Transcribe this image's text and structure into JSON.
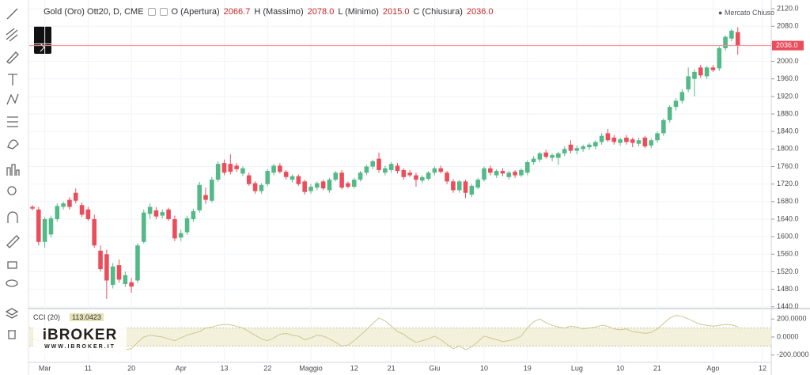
{
  "header": {
    "symbol": "Gold (Oro) Ott20, D, CME",
    "open_label": "O (Apertura)",
    "open": "2066.7",
    "high_label": "H (Massimo)",
    "high": "2078.0",
    "low_label": "L (Minimo)",
    "low": "2015.0",
    "close_label": "C (Chiusura)",
    "close": "2036.0",
    "market_status": "Mercato Chiuso",
    "last_price_label": "2036.0"
  },
  "logo": {
    "brand": "iBROKER",
    "url": "WWW.IBROKER.IT"
  },
  "chart_data": {
    "type": "candlestick",
    "up_color": "#53b987",
    "down_color": "#eb4d5c",
    "price_line_color": "#f28b8b",
    "categories": [
      null,
      null,
      "Mar",
      null,
      null,
      null,
      null,
      null,
      null,
      "11",
      null,
      null,
      null,
      null,
      null,
      null,
      "20",
      null,
      null,
      null,
      null,
      null,
      null,
      null,
      "Apr",
      null,
      null,
      null,
      null,
      null,
      null,
      "13",
      null,
      null,
      null,
      null,
      null,
      null,
      "22",
      null,
      null,
      null,
      null,
      null,
      null,
      "Maggio",
      null,
      null,
      null,
      null,
      null,
      null,
      "12",
      null,
      null,
      null,
      null,
      null,
      "21",
      null,
      null,
      null,
      null,
      null,
      null,
      "Giu",
      null,
      null,
      null,
      null,
      null,
      null,
      null,
      "10",
      null,
      null,
      null,
      null,
      null,
      null,
      "19",
      null,
      null,
      null,
      null,
      null,
      null,
      null,
      "Lug",
      null,
      null,
      null,
      null,
      null,
      null,
      "10",
      null,
      null,
      null,
      null,
      null,
      "21",
      null,
      null,
      null,
      null,
      null,
      null,
      null,
      null,
      "Ago",
      null,
      null,
      null,
      null,
      null,
      null,
      null,
      "12"
    ],
    "candles": [
      [
        1668,
        1672,
        1660,
        1664
      ],
      [
        1662,
        1668,
        1580,
        1588
      ],
      [
        1588,
        1645,
        1575,
        1640
      ],
      [
        1605,
        1648,
        1598,
        1642
      ],
      [
        1640,
        1676,
        1634,
        1670
      ],
      [
        1668,
        1680,
        1662,
        1676
      ],
      [
        1684,
        1690,
        1662,
        1668
      ],
      [
        1700,
        1710,
        1676,
        1682
      ],
      [
        1672,
        1678,
        1645,
        1650
      ],
      [
        1662,
        1668,
        1636,
        1640
      ],
      [
        1640,
        1650,
        1575,
        1580
      ],
      [
        1568,
        1580,
        1520,
        1526
      ],
      [
        1560,
        1570,
        1458,
        1500
      ],
      [
        1490,
        1540,
        1482,
        1532
      ],
      [
        1535,
        1548,
        1495,
        1502
      ],
      [
        1492,
        1520,
        1485,
        1512
      ],
      [
        1496,
        1506,
        1472,
        1486
      ],
      [
        1500,
        1585,
        1494,
        1580
      ],
      [
        1588,
        1662,
        1584,
        1655
      ],
      [
        1652,
        1676,
        1640,
        1668
      ],
      [
        1660,
        1668,
        1640,
        1646
      ],
      [
        1648,
        1662,
        1642,
        1656
      ],
      [
        1662,
        1666,
        1636,
        1640
      ],
      [
        1640,
        1648,
        1590,
        1596
      ],
      [
        1598,
        1616,
        1590,
        1608
      ],
      [
        1610,
        1648,
        1604,
        1642
      ],
      [
        1640,
        1664,
        1634,
        1658
      ],
      [
        1660,
        1725,
        1655,
        1718
      ],
      [
        1695,
        1712,
        1675,
        1684
      ],
      [
        1682,
        1736,
        1678,
        1730
      ],
      [
        1730,
        1772,
        1725,
        1766
      ],
      [
        1768,
        1776,
        1740,
        1746
      ],
      [
        1766,
        1788,
        1742,
        1748
      ],
      [
        1762,
        1768,
        1748,
        1754
      ],
      [
        1744,
        1760,
        1738,
        1756
      ],
      [
        1740,
        1746,
        1716,
        1720
      ],
      [
        1722,
        1726,
        1698,
        1704
      ],
      [
        1704,
        1722,
        1698,
        1718
      ],
      [
        1720,
        1754,
        1715,
        1750
      ],
      [
        1746,
        1766,
        1740,
        1762
      ],
      [
        1762,
        1768,
        1744,
        1748
      ],
      [
        1748,
        1752,
        1730,
        1736
      ],
      [
        1730,
        1742,
        1724,
        1738
      ],
      [
        1738,
        1742,
        1716,
        1720
      ],
      [
        1726,
        1730,
        1696,
        1702
      ],
      [
        1704,
        1720,
        1698,
        1714
      ],
      [
        1712,
        1726,
        1706,
        1722
      ],
      [
        1726,
        1730,
        1706,
        1710
      ],
      [
        1706,
        1734,
        1700,
        1730
      ],
      [
        1730,
        1750,
        1726,
        1746
      ],
      [
        1746,
        1752,
        1708,
        1712
      ],
      [
        1722,
        1726,
        1710,
        1714
      ],
      [
        1714,
        1734,
        1710,
        1730
      ],
      [
        1730,
        1750,
        1726,
        1746
      ],
      [
        1746,
        1764,
        1740,
        1760
      ],
      [
        1760,
        1776,
        1754,
        1772
      ],
      [
        1778,
        1792,
        1746,
        1752
      ],
      [
        1746,
        1762,
        1740,
        1756
      ],
      [
        1752,
        1770,
        1746,
        1766
      ],
      [
        1762,
        1768,
        1744,
        1750
      ],
      [
        1752,
        1756,
        1730,
        1736
      ],
      [
        1746,
        1752,
        1736,
        1740
      ],
      [
        1740,
        1746,
        1714,
        1730
      ],
      [
        1728,
        1740,
        1722,
        1736
      ],
      [
        1732,
        1750,
        1728,
        1746
      ],
      [
        1746,
        1760,
        1740,
        1756
      ],
      [
        1756,
        1762,
        1744,
        1748
      ],
      [
        1746,
        1750,
        1720,
        1726
      ],
      [
        1726,
        1732,
        1700,
        1706
      ],
      [
        1706,
        1730,
        1700,
        1726
      ],
      [
        1726,
        1730,
        1688,
        1700
      ],
      [
        1696,
        1720,
        1690,
        1716
      ],
      [
        1712,
        1734,
        1708,
        1730
      ],
      [
        1730,
        1760,
        1726,
        1756
      ],
      [
        1756,
        1762,
        1740,
        1746
      ],
      [
        1740,
        1754,
        1734,
        1750
      ],
      [
        1750,
        1756,
        1738,
        1744
      ],
      [
        1736,
        1750,
        1730,
        1746
      ],
      [
        1748,
        1752,
        1734,
        1740
      ],
      [
        1740,
        1756,
        1736,
        1752
      ],
      [
        1746,
        1774,
        1740,
        1770
      ],
      [
        1770,
        1784,
        1764,
        1778
      ],
      [
        1776,
        1794,
        1770,
        1790
      ],
      [
        1792,
        1798,
        1778,
        1782
      ],
      [
        1780,
        1790,
        1772,
        1786
      ],
      [
        1780,
        1794,
        1764,
        1790
      ],
      [
        1790,
        1806,
        1784,
        1800
      ],
      [
        1810,
        1820,
        1790,
        1796
      ],
      [
        1796,
        1808,
        1788,
        1802
      ],
      [
        1800,
        1810,
        1794,
        1806
      ],
      [
        1804,
        1814,
        1798,
        1810
      ],
      [
        1806,
        1820,
        1800,
        1816
      ],
      [
        1816,
        1836,
        1810,
        1830
      ],
      [
        1836,
        1846,
        1816,
        1820
      ],
      [
        1826,
        1832,
        1810,
        1816
      ],
      [
        1814,
        1826,
        1808,
        1822
      ],
      [
        1826,
        1832,
        1810,
        1816
      ],
      [
        1822,
        1826,
        1804,
        1814
      ],
      [
        1812,
        1826,
        1806,
        1820
      ],
      [
        1826,
        1830,
        1802,
        1806
      ],
      [
        1808,
        1824,
        1802,
        1820
      ],
      [
        1820,
        1840,
        1814,
        1836
      ],
      [
        1836,
        1870,
        1830,
        1866
      ],
      [
        1866,
        1900,
        1860,
        1896
      ],
      [
        1896,
        1916,
        1888,
        1910
      ],
      [
        1910,
        1936,
        1904,
        1930
      ],
      [
        1936,
        1986,
        1930,
        1966
      ],
      [
        1960,
        1982,
        1920,
        1976
      ],
      [
        1986,
        1992,
        1962,
        1968
      ],
      [
        1966,
        1990,
        1960,
        1986
      ],
      [
        1986,
        1992,
        1976,
        1980
      ],
      [
        1984,
        2034,
        1978,
        2030
      ],
      [
        2030,
        2060,
        2024,
        2056
      ],
      [
        2052,
        2074,
        2046,
        2070
      ],
      [
        2066.7,
        2078,
        2015,
        2036
      ],
      null,
      null,
      null,
      null
    ],
    "ylim": [
      1436,
      2140
    ],
    "yticks": [
      {
        "value": 1440,
        "label": "1440.0"
      },
      {
        "value": 1480,
        "label": "1480.0"
      },
      {
        "value": 1520,
        "label": "1520.0"
      },
      {
        "value": 1560,
        "label": "1560.0"
      },
      {
        "value": 1600,
        "label": "1600.0"
      },
      {
        "value": 1640,
        "label": "1640.0"
      },
      {
        "value": 1680,
        "label": "1680.0"
      },
      {
        "value": 1720,
        "label": "1720.0"
      },
      {
        "value": 1760,
        "label": "1760.0"
      },
      {
        "value": 1800,
        "label": "1800.0"
      },
      {
        "value": 1840,
        "label": "1840.0"
      },
      {
        "value": 1880,
        "label": "1880.0"
      },
      {
        "value": 1920,
        "label": "1920.0"
      },
      {
        "value": 1960,
        "label": "1960.0"
      },
      {
        "value": 2000,
        "label": "2000.0"
      },
      {
        "value": 2040,
        "label": "2040.0"
      },
      {
        "value": 2080,
        "label": "2080.0"
      },
      {
        "value": 2120,
        "label": "2120.0"
      }
    ],
    "grid": true,
    "indicator": {
      "name": "CCI (20)",
      "value_label": "113.0423",
      "color": "#cdc78f",
      "band": [
        -100,
        100
      ],
      "band_color": "#f3f1dc",
      "values": [
        -20,
        -40,
        -30,
        -10,
        10,
        20,
        15,
        30,
        -10,
        -40,
        -80,
        -120,
        -160,
        -150,
        -170,
        -140,
        -130,
        -60,
        0,
        20,
        10,
        0,
        -20,
        -40,
        -10,
        20,
        40,
        60,
        100,
        110,
        130,
        140,
        135,
        120,
        100,
        60,
        20,
        -20,
        -40,
        -10,
        30,
        40,
        20,
        10,
        -30,
        -10,
        20,
        10,
        -20,
        -60,
        -100,
        -90,
        -40,
        20,
        80,
        150,
        210,
        180,
        120,
        60,
        30,
        -20,
        -60,
        -40,
        -20,
        10,
        -30,
        -80,
        -130,
        -100,
        -140,
        -110,
        -50,
        10,
        -10,
        -30,
        -50,
        -40,
        -20,
        10,
        100,
        170,
        200,
        160,
        130,
        110,
        100,
        120,
        110,
        90,
        100,
        110,
        130,
        120,
        90,
        80,
        90,
        60,
        50,
        40,
        50,
        90,
        150,
        210,
        240,
        230,
        200,
        170,
        140,
        130,
        120,
        130,
        140,
        135,
        113.0423
      ],
      "y2lim": [
        -290,
        290
      ],
      "y2ticks": [
        {
          "value": 200,
          "label": "200.0000"
        },
        {
          "value": 0,
          "label": "0.0000"
        },
        {
          "value": -200,
          "label": "-200.0000"
        }
      ]
    }
  }
}
